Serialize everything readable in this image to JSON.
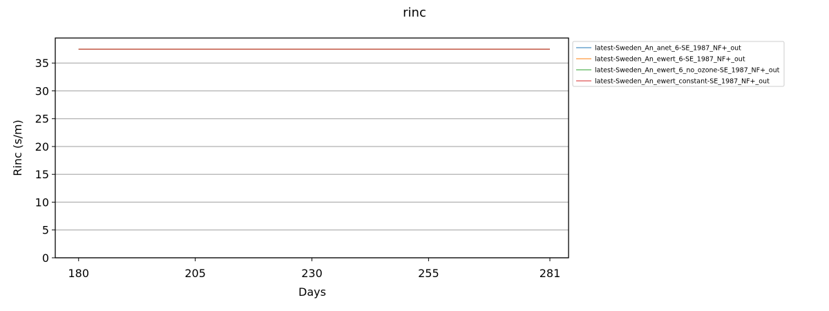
{
  "chart_data": {
    "type": "line",
    "title": "rinc",
    "xlabel": "Days",
    "ylabel": "Rinc (s/m)",
    "xlim": [
      175,
      285
    ],
    "ylim": [
      0,
      39.5
    ],
    "xticks": [
      180,
      205,
      230,
      255,
      281
    ],
    "yticks": [
      0,
      5,
      10,
      15,
      20,
      25,
      30,
      35
    ],
    "grid": "horizontal",
    "legend_position": "outside-top-right",
    "series": [
      {
        "name": "latest-Sweden_An_anet_6-SE_1987_NF+_out",
        "color": "#1f77b4",
        "x": [
          180,
          281
        ],
        "y": [
          37.5,
          37.5
        ]
      },
      {
        "name": "latest-Sweden_An_ewert_6-SE_1987_NF+_out",
        "color": "#ff7f0e",
        "x": [
          180,
          281
        ],
        "y": [
          37.5,
          37.5
        ]
      },
      {
        "name": "latest-Sweden_An_ewert_6_no_ozone-SE_1987_NF+_out",
        "color": "#2ca02c",
        "x": [
          180,
          281
        ],
        "y": [
          37.5,
          37.5
        ]
      },
      {
        "name": "latest-Sweden_An_ewert_constant-SE_1987_NF+_out",
        "color": "#d62728",
        "x": [
          180,
          281
        ],
        "y": [
          37.5,
          37.5
        ]
      }
    ]
  }
}
